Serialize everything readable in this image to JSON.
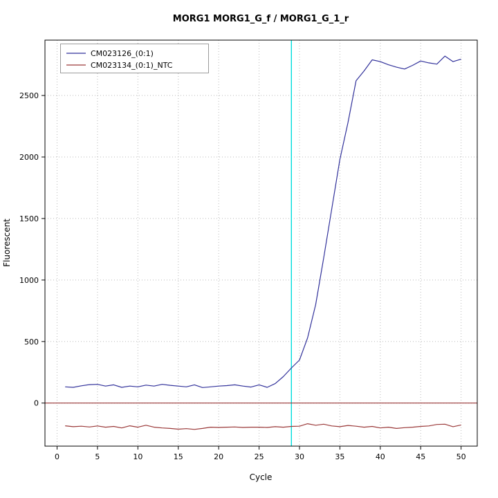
{
  "chart_data": {
    "type": "line",
    "title": "MORG1  MORG1_G_f / MORG1_G_1_r",
    "xlabel": "Cycle",
    "ylabel": "Fluorescent",
    "xlim": [
      -1.5,
      52
    ],
    "ylim": [
      -350,
      2950
    ],
    "x_ticks": [
      0,
      5,
      10,
      15,
      20,
      25,
      30,
      35,
      40,
      45,
      50
    ],
    "y_ticks": [
      0,
      500,
      1000,
      1500,
      2000,
      2500
    ],
    "grid": true,
    "grid_color": "#b8b8b8",
    "legend_position": "top-left",
    "x": [
      1,
      2,
      3,
      4,
      5,
      6,
      7,
      8,
      9,
      10,
      11,
      12,
      13,
      14,
      15,
      16,
      17,
      18,
      19,
      20,
      21,
      22,
      23,
      24,
      25,
      26,
      27,
      28,
      29,
      30,
      31,
      32,
      33,
      34,
      35,
      36,
      37,
      38,
      39,
      40,
      41,
      42,
      43,
      44,
      45,
      46,
      47,
      48,
      49,
      50
    ],
    "series": [
      {
        "name": "CM023126_(0:1)",
        "color": "#30309a",
        "values": [
          132,
          128,
          140,
          150,
          152,
          138,
          148,
          128,
          138,
          132,
          146,
          138,
          152,
          144,
          138,
          132,
          148,
          126,
          132,
          138,
          142,
          148,
          138,
          130,
          148,
          128,
          158,
          215,
          285,
          350,
          530,
          800,
          1180,
          1580,
          1980,
          2280,
          2620,
          2700,
          2790,
          2775,
          2750,
          2730,
          2715,
          2745,
          2780,
          2765,
          2755,
          2820,
          2775,
          2795
        ]
      },
      {
        "name": "CM023134_(0:1)_NTC",
        "color": "#9a3838",
        "values": [
          -185,
          -192,
          -188,
          -194,
          -186,
          -196,
          -190,
          -202,
          -185,
          -196,
          -180,
          -196,
          -202,
          -206,
          -212,
          -208,
          -214,
          -206,
          -196,
          -198,
          -196,
          -194,
          -198,
          -196,
          -196,
          -198,
          -192,
          -196,
          -190,
          -188,
          -168,
          -180,
          -172,
          -186,
          -192,
          -182,
          -188,
          -196,
          -190,
          -202,
          -196,
          -206,
          -200,
          -196,
          -190,
          -186,
          -174,
          -172,
          -192,
          -178
        ]
      }
    ],
    "threshold_line": {
      "y": 0,
      "color": "#8b1a1a"
    },
    "vertical_line": {
      "x": 29,
      "color": "#00dddd"
    }
  }
}
